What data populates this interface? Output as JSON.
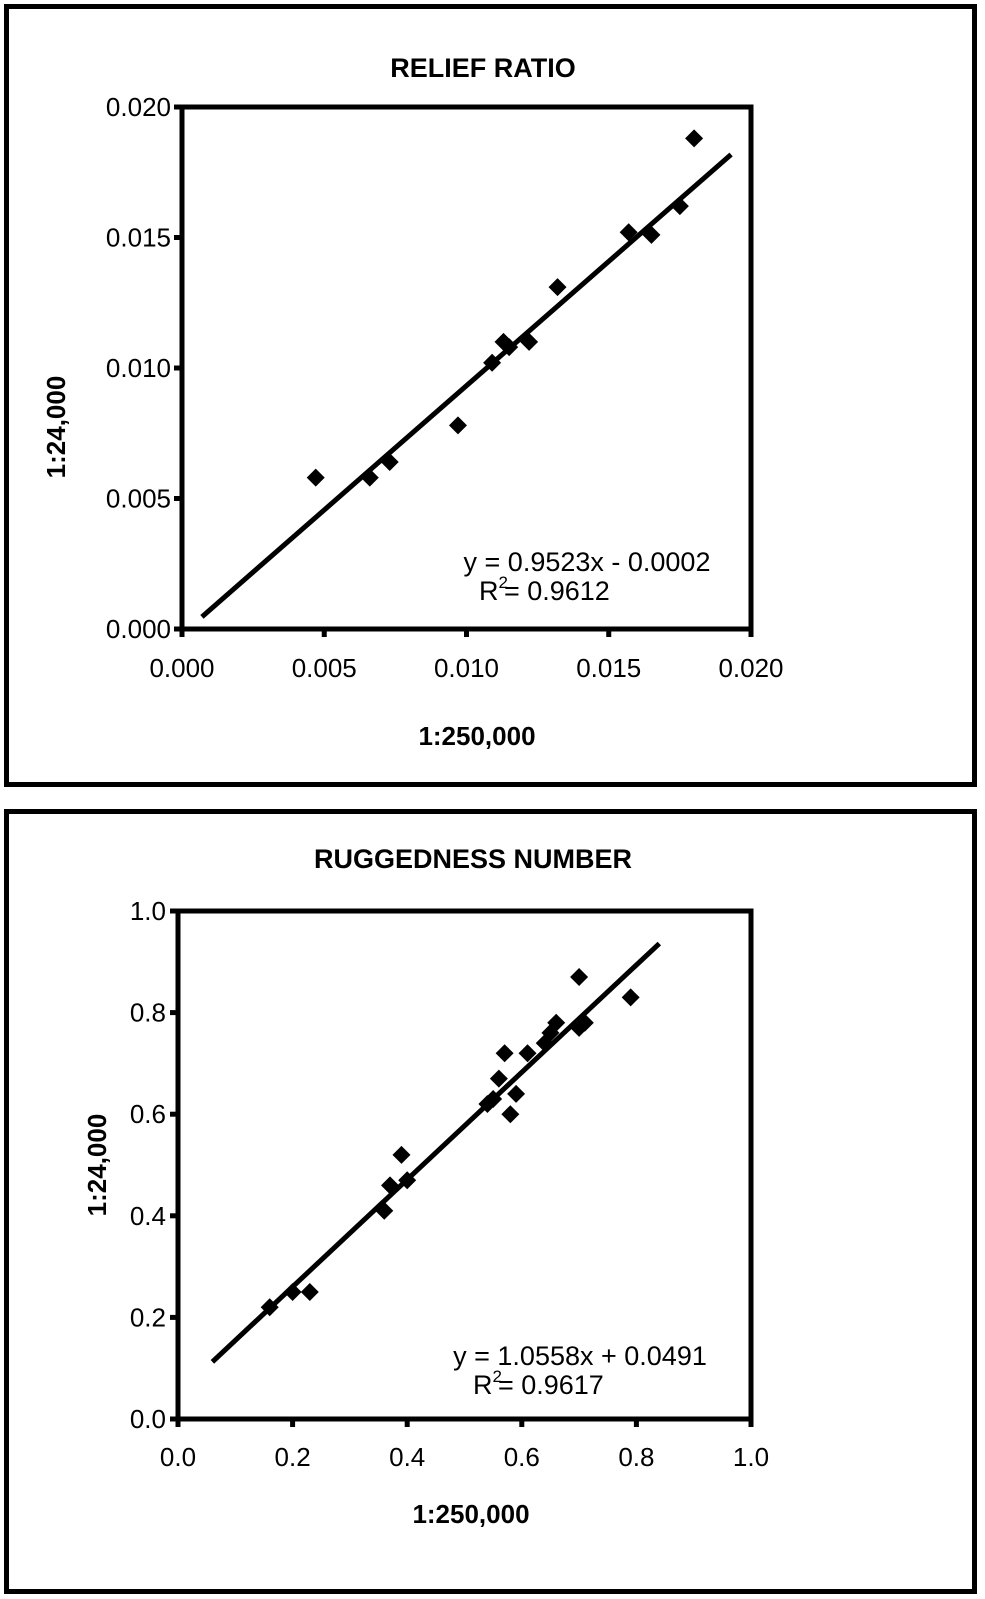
{
  "chart_data": [
    {
      "type": "scatter",
      "title": "RELIEF RATIO",
      "xlabel": "1:250,000",
      "ylabel": "1:24,000",
      "xlim": [
        0.0,
        0.02
      ],
      "ylim": [
        0.0,
        0.02
      ],
      "x_ticks": [
        "0.000",
        "0.005",
        "0.010",
        "0.015",
        "0.020"
      ],
      "y_ticks": [
        "0.000",
        "0.005",
        "0.010",
        "0.015",
        "0.020"
      ],
      "points": [
        {
          "x": 0.0047,
          "y": 0.0058
        },
        {
          "x": 0.0066,
          "y": 0.0058
        },
        {
          "x": 0.0073,
          "y": 0.0064
        },
        {
          "x": 0.0097,
          "y": 0.0078
        },
        {
          "x": 0.0109,
          "y": 0.0102
        },
        {
          "x": 0.0113,
          "y": 0.011
        },
        {
          "x": 0.0115,
          "y": 0.0108
        },
        {
          "x": 0.0122,
          "y": 0.011
        },
        {
          "x": 0.0132,
          "y": 0.0131
        },
        {
          "x": 0.0157,
          "y": 0.0152
        },
        {
          "x": 0.0165,
          "y": 0.0151
        },
        {
          "x": 0.0175,
          "y": 0.0162
        },
        {
          "x": 0.018,
          "y": 0.0188
        }
      ],
      "trendline": {
        "slope": 0.9523,
        "intercept": -0.0002,
        "x_range": [
          0.0007,
          0.0193
        ]
      },
      "equation": "y = 0.9523x - 0.0002",
      "r_squared_label": "R",
      "r_squared_exp": "2",
      "r_squared_value": "= 0.9612",
      "grid": false,
      "legend": "none"
    },
    {
      "type": "scatter",
      "title": "RUGGEDNESS NUMBER",
      "xlabel": "1:250,000",
      "ylabel": "1:24,000",
      "xlim": [
        0.0,
        1.0
      ],
      "ylim": [
        0.0,
        1.0
      ],
      "x_ticks": [
        "0.0",
        "0.2",
        "0.4",
        "0.6",
        "0.8",
        "1.0"
      ],
      "y_ticks": [
        "0.0",
        "0.2",
        "0.4",
        "0.6",
        "0.8",
        "1.0"
      ],
      "points": [
        {
          "x": 0.16,
          "y": 0.22
        },
        {
          "x": 0.2,
          "y": 0.25
        },
        {
          "x": 0.23,
          "y": 0.25
        },
        {
          "x": 0.36,
          "y": 0.41
        },
        {
          "x": 0.37,
          "y": 0.46
        },
        {
          "x": 0.39,
          "y": 0.52
        },
        {
          "x": 0.4,
          "y": 0.47
        },
        {
          "x": 0.54,
          "y": 0.62
        },
        {
          "x": 0.55,
          "y": 0.63
        },
        {
          "x": 0.56,
          "y": 0.67
        },
        {
          "x": 0.57,
          "y": 0.72
        },
        {
          "x": 0.58,
          "y": 0.6
        },
        {
          "x": 0.59,
          "y": 0.64
        },
        {
          "x": 0.61,
          "y": 0.72
        },
        {
          "x": 0.64,
          "y": 0.74
        },
        {
          "x": 0.65,
          "y": 0.76
        },
        {
          "x": 0.66,
          "y": 0.78
        },
        {
          "x": 0.7,
          "y": 0.77
        },
        {
          "x": 0.71,
          "y": 0.78
        },
        {
          "x": 0.7,
          "y": 0.87
        },
        {
          "x": 0.79,
          "y": 0.83
        }
      ],
      "trendline": {
        "slope": 1.0558,
        "intercept": 0.0491,
        "x_range": [
          0.06,
          0.84
        ]
      },
      "equation": "y = 1.0558x + 0.0491",
      "r_squared_label": "R",
      "r_squared_exp": "2",
      "r_squared_value": "= 0.9617",
      "grid": false,
      "legend": "none"
    }
  ]
}
